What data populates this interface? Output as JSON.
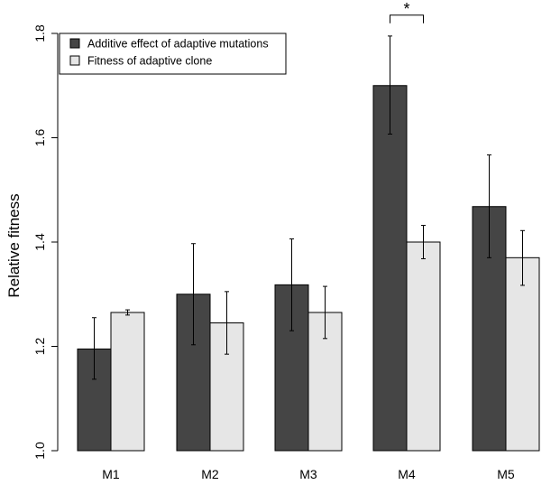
{
  "chart_data": {
    "type": "bar",
    "ylabel": "Relative fitness",
    "xlabel": "",
    "ylim": [
      1.0,
      1.8
    ],
    "yticks": [
      1.0,
      1.2,
      1.4,
      1.6,
      1.8
    ],
    "ytick_labels": [
      "1.0",
      "1.2",
      "1.4",
      "1.6",
      "1.8"
    ],
    "categories": [
      "M1",
      "M2",
      "M3",
      "M4",
      "M5"
    ],
    "series": [
      {
        "name": "Additive effect of adaptive mutations",
        "color": "#454545",
        "values": [
          1.195,
          1.3,
          1.318,
          1.7,
          1.468
        ],
        "err_low": [
          1.137,
          1.203,
          1.23,
          1.607,
          1.37
        ],
        "err_high": [
          1.255,
          1.397,
          1.406,
          1.795,
          1.567
        ]
      },
      {
        "name": "Fitness of adaptive clone",
        "color": "#e6e6e6",
        "values": [
          1.265,
          1.245,
          1.265,
          1.4,
          1.37
        ],
        "err_low": [
          1.26,
          1.185,
          1.215,
          1.368,
          1.317
        ],
        "err_high": [
          1.27,
          1.305,
          1.315,
          1.432,
          1.422
        ]
      }
    ],
    "legend_position": "top-left",
    "grid": false,
    "annotations": [
      {
        "type": "significance",
        "category": "M4",
        "text": "*",
        "y": 1.835
      }
    ]
  }
}
